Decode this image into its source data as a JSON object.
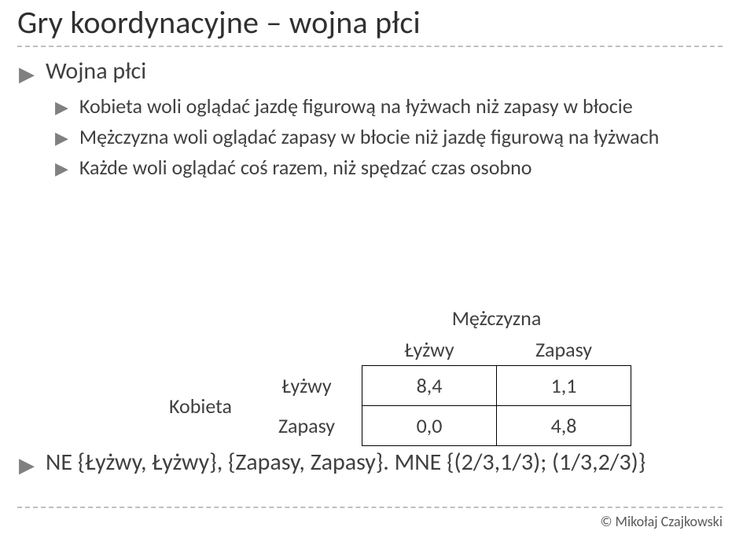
{
  "title": "Gry koordynacyjne – wojna płci",
  "bullets": {
    "lvl1": "Wojna płci",
    "lvl2": [
      "Kobieta woli oglądać jazdę figurową na łyżwach niż zapasy w błocie",
      "Mężczyzna woli oglądać zapasy w błocie niż jazdę figurową na łyżwach",
      "Każde woli oglądać coś razem, niż spędzać czas osobno"
    ]
  },
  "table": {
    "col_player": "Mężczyzna",
    "row_player": "Kobieta",
    "col_headers": [
      "Łyżwy",
      "Zapasy"
    ],
    "row_headers": [
      "Łyżwy",
      "Zapasy"
    ],
    "cells": [
      [
        "8,4",
        "1,1"
      ],
      [
        "0,0",
        "4,8"
      ]
    ]
  },
  "ne_text": "NE {Łyżwy, Łyżwy}, {Zapasy, Zapasy}. MNE {(2/3,1/3); (1/3,2/3)}",
  "footer": "© Mikołaj Czajkowski",
  "markers": {
    "lvl1": "▶",
    "lvl2": "▶"
  }
}
